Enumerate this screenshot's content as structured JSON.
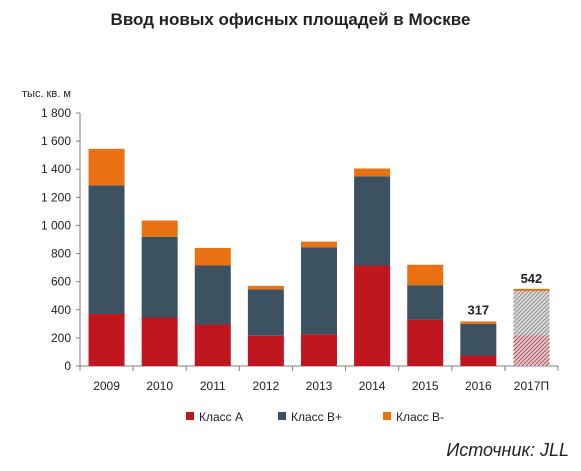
{
  "chart_data": {
    "type": "bar",
    "stacked": true,
    "title": "Ввод новых офисных площадей в Москве",
    "ylabel": "тыс. кв. м",
    "xlabel": "",
    "ylim": [
      0,
      1800
    ],
    "yticks": [
      "0",
      "200",
      "400",
      "600",
      "800",
      "1 000",
      "1 200",
      "1 400",
      "1 600",
      "1 800"
    ],
    "grid": false,
    "legend": "bottom",
    "categories": [
      "2009",
      "2010",
      "2011",
      "2012",
      "2013",
      "2014",
      "2015",
      "2016",
      "2017П"
    ],
    "series": [
      {
        "name": "Класс А",
        "color": "#c0161f",
        "values": [
          370,
          345,
          295,
          215,
          225,
          715,
          330,
          75,
          null
        ]
      },
      {
        "name": "Класс В+",
        "color": "#3d5260",
        "values": [
          915,
          575,
          420,
          330,
          620,
          635,
          245,
          225,
          null
        ]
      },
      {
        "name": "Класс В-",
        "color": "#e97112",
        "values": [
          260,
          115,
          125,
          25,
          40,
          55,
          145,
          17,
          null
        ]
      }
    ],
    "forecast": {
      "category": "2017П",
      "total": 542,
      "style": "hatched"
    },
    "data_labels": [
      {
        "category": "2016",
        "text": "317"
      },
      {
        "category": "2017П",
        "text": "542"
      }
    ]
  },
  "source": "Источник: JLL"
}
